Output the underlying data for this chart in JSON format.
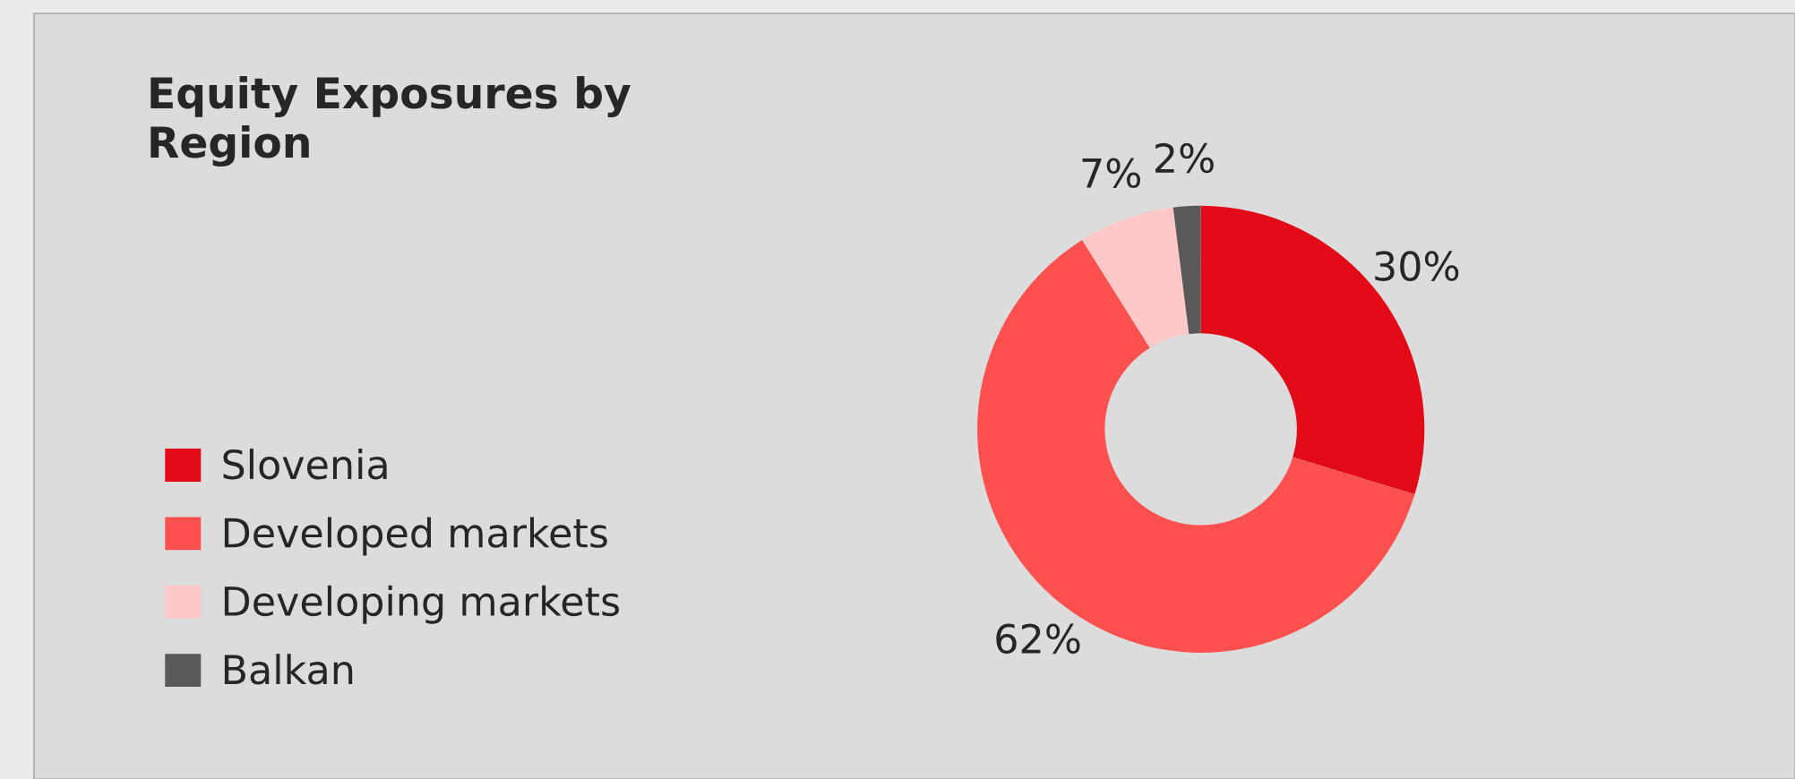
{
  "chart_data": {
    "type": "donut",
    "title": "Equity Exposures by\nRegion",
    "categories": [
      "Slovenia",
      "Developed markets",
      "Developing markets",
      "Balkan"
    ],
    "values": [
      30,
      62,
      7,
      2
    ],
    "colors": [
      "#e20a17",
      "#ff5050",
      "#ffc8c8",
      "#595959"
    ],
    "value_labels": [
      "30%",
      "62%",
      "7%",
      "2%"
    ],
    "legend": "left"
  }
}
